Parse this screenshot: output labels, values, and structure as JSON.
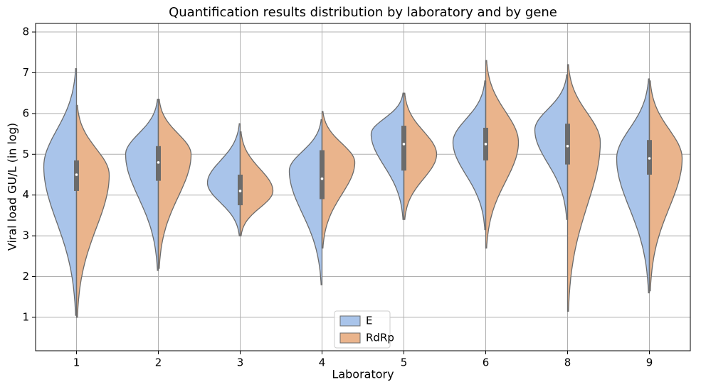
{
  "chart_data": {
    "type": "split_violin",
    "title": "Quantification results distribution by laboratory and by gene",
    "x_label": "Laboratory",
    "y_label": "Viral load GU/L (in log)",
    "categories": [
      "1",
      "2",
      "3",
      "4",
      "5",
      "6",
      "8",
      "9"
    ],
    "ylim": [
      0.18,
      8.21
    ],
    "yticks": [
      1,
      2,
      3,
      4,
      5,
      6,
      7,
      8
    ],
    "grid": true,
    "legend": "lower center",
    "series": [
      {
        "name": "E",
        "color": "#a9c4ea",
        "point_color": "#0a3fd6",
        "min": [
          1.05,
          2.15,
          3.0,
          1.8,
          3.4,
          3.15,
          3.4,
          1.6
        ],
        "mode": [
          4.7,
          5.0,
          4.3,
          4.6,
          5.5,
          5.3,
          5.6,
          4.9
        ],
        "max": [
          7.1,
          6.35,
          5.75,
          5.85,
          6.5,
          6.8,
          6.95,
          6.85
        ]
      },
      {
        "name": "RdRp",
        "color": "#eab48c",
        "point_color": "#e8700a",
        "min": [
          1.0,
          2.2,
          3.0,
          2.7,
          3.4,
          2.7,
          1.15,
          1.65
        ],
        "mode": [
          4.5,
          5.0,
          4.1,
          4.8,
          5.0,
          5.3,
          5.3,
          4.9
        ],
        "max": [
          6.2,
          6.35,
          5.55,
          6.05,
          6.5,
          7.3,
          7.2,
          6.8
        ]
      }
    ],
    "box": {
      "q1": [
        4.1,
        4.35,
        3.75,
        3.9,
        4.6,
        4.85,
        4.75,
        4.5
      ],
      "median": [
        4.5,
        4.8,
        4.1,
        4.4,
        5.25,
        5.25,
        5.2,
        4.9
      ],
      "q3": [
        4.85,
        5.2,
        4.5,
        5.1,
        5.7,
        5.65,
        5.75,
        5.35
      ]
    }
  }
}
